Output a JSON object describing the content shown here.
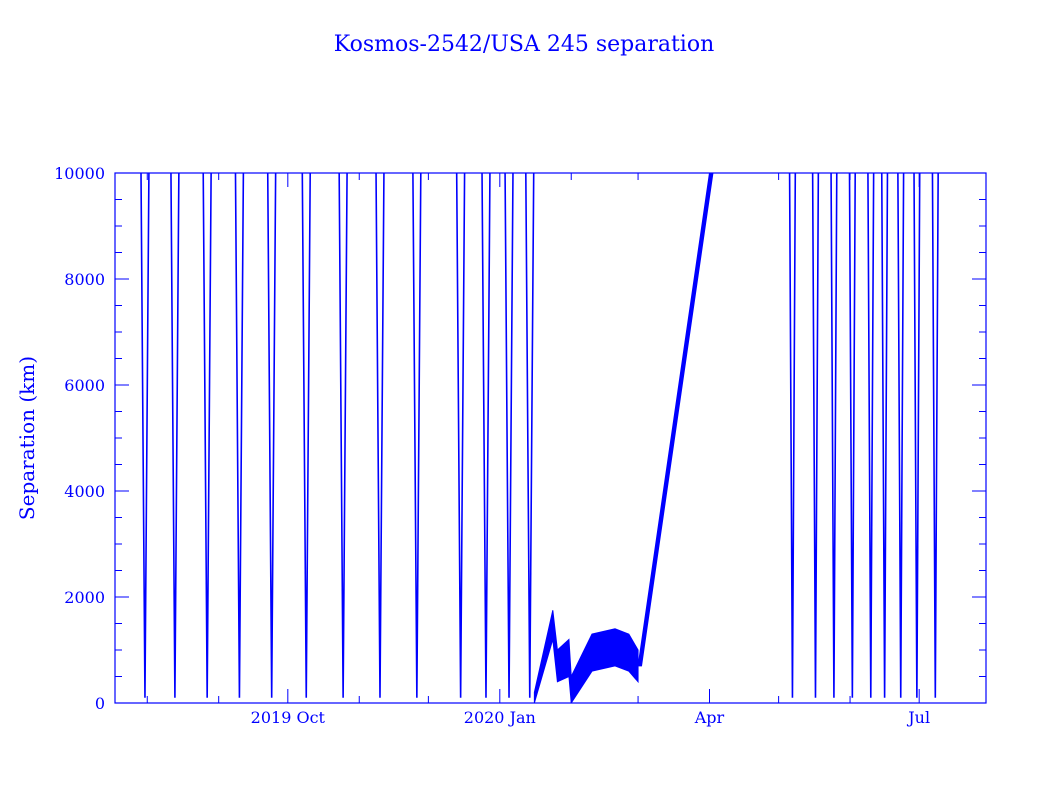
{
  "chart_data": {
    "type": "line",
    "title": "Kosmos-2542/USA 245 separation",
    "xlabel": "",
    "ylabel": "Separation (km)",
    "x_unit": "date",
    "xlim": [
      "2019-07-18",
      "2020-07-30"
    ],
    "ylim": [
      0,
      10000
    ],
    "y_ticks": [
      {
        "value": 0,
        "label": "0"
      },
      {
        "value": 2000,
        "label": "2000"
      },
      {
        "value": 4000,
        "label": "4000"
      },
      {
        "value": 6000,
        "label": "6000"
      },
      {
        "value": 8000,
        "label": "8000"
      },
      {
        "value": 10000,
        "label": "10000"
      }
    ],
    "x_ticks": [
      {
        "date": "2019-10-01",
        "label": "2019 Oct"
      },
      {
        "date": "2020-01-01",
        "label": "2020 Jan"
      },
      {
        "date": "2020-04-01",
        "label": "Apr"
      },
      {
        "date": "2020-07-01",
        "label": "Jul"
      }
    ],
    "grid": false,
    "legend": "none",
    "color": "#0000ff",
    "oscillation_period_1_minima": [
      "2019-07-31",
      "2019-08-13",
      "2019-08-27",
      "2019-09-10",
      "2019-09-24",
      "2019-10-09",
      "2019-10-25",
      "2019-11-10",
      "2019-11-26",
      "2019-12-15",
      "2019-12-26",
      "2020-01-05",
      "2020-01-14"
    ],
    "oscillation_period_2_minima": [
      "2020-05-07",
      "2020-05-17",
      "2020-05-25",
      "2020-06-02",
      "2020-06-10",
      "2020-06-16",
      "2020-06-23",
      "2020-06-30",
      "2020-07-08"
    ],
    "close_approach_bands": [
      {
        "series": "upper envelope",
        "points": [
          [
            "2020-01-16",
            200
          ],
          [
            "2020-01-24",
            1750
          ],
          [
            "2020-01-26",
            1000
          ],
          [
            "2020-01-31",
            1200
          ],
          [
            "2020-02-01",
            500
          ],
          [
            "2020-02-10",
            1300
          ],
          [
            "2020-02-20",
            1400
          ],
          [
            "2020-02-26",
            1300
          ],
          [
            "2020-03-01",
            1000
          ]
        ]
      },
      {
        "series": "lower envelope",
        "points": [
          [
            "2020-01-16",
            0
          ],
          [
            "2020-01-24",
            1200
          ],
          [
            "2020-01-26",
            400
          ],
          [
            "2020-01-31",
            500
          ],
          [
            "2020-02-01",
            0
          ],
          [
            "2020-02-10",
            600
          ],
          [
            "2020-02-20",
            700
          ],
          [
            "2020-02-26",
            600
          ],
          [
            "2020-03-01",
            400
          ]
        ]
      }
    ],
    "departure_band": {
      "start": [
        "2020-03-01",
        700
      ],
      "end": [
        "2020-04-01",
        10000
      ],
      "width_days": 1.5
    }
  }
}
